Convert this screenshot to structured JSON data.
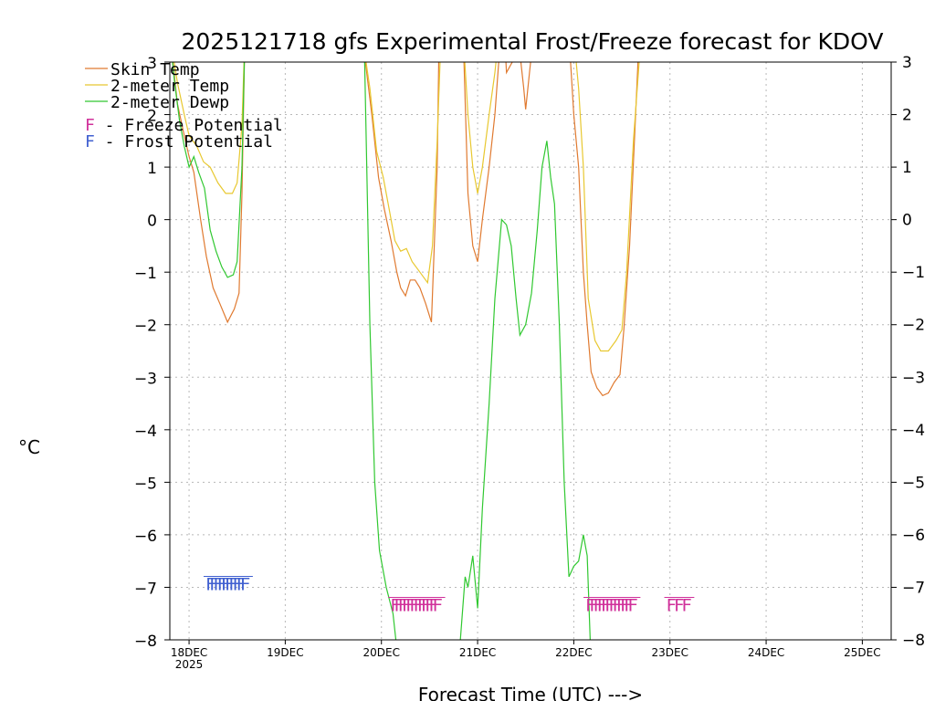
{
  "chart_data": {
    "type": "line",
    "title": "2025121718 gfs Experimental Frost/Freeze forecast for KDOV",
    "ylabel": "°C",
    "xlabel": "Forecast Time (UTC) --->",
    "ylim": [
      -8,
      3
    ],
    "xlim": [
      -0.2,
      7.3
    ],
    "yticks": [
      3,
      2,
      1,
      0,
      -1,
      -2,
      -3,
      -4,
      -5,
      -6,
      -7,
      -8
    ],
    "ytick_labels": [
      "3",
      "2",
      "1",
      "0",
      "−1",
      "−2",
      "−3",
      "−4",
      "−5",
      "−6",
      "−7",
      "−8"
    ],
    "xticks": [
      {
        "x": 0,
        "label": "18DEC",
        "sublabel": "2025"
      },
      {
        "x": 1,
        "label": "19DEC",
        "sublabel": ""
      },
      {
        "x": 2,
        "label": "20DEC",
        "sublabel": ""
      },
      {
        "x": 3,
        "label": "21DEC",
        "sublabel": ""
      },
      {
        "x": 4,
        "label": "22DEC",
        "sublabel": ""
      },
      {
        "x": 5,
        "label": "23DEC",
        "sublabel": ""
      },
      {
        "x": 6,
        "label": "24DEC",
        "sublabel": ""
      },
      {
        "x": 7,
        "label": "25DEC",
        "sublabel": ""
      }
    ],
    "grid": true,
    "legend": {
      "position": "top-left",
      "entries": [
        {
          "name": "Skin Temp",
          "color": "#e07a30"
        },
        {
          "name": "2-meter Temp",
          "color": "#e8c830"
        },
        {
          "name": "2-meter Dewp",
          "color": "#30c830"
        }
      ],
      "potentials": [
        {
          "letter": "F",
          "text": " - Freeze Potential",
          "color": "#d0309a"
        },
        {
          "letter": "F",
          "text": " - Frost Potential",
          "color": "#4060d0"
        }
      ]
    },
    "series": [
      {
        "name": "Skin Temp",
        "color": "#e07a30",
        "points": [
          [
            -0.2,
            3.5
          ],
          [
            -0.12,
            2.2
          ],
          [
            -0.05,
            1.6
          ],
          [
            0,
            1.2
          ],
          [
            0.05,
            0.9
          ],
          [
            0.12,
            0
          ],
          [
            0.18,
            -0.7
          ],
          [
            0.25,
            -1.3
          ],
          [
            0.32,
            -1.6
          ],
          [
            0.4,
            -1.95
          ],
          [
            0.47,
            -1.7
          ],
          [
            0.52,
            -1.4
          ],
          [
            0.55,
            0.5
          ],
          [
            0.58,
            3.5
          ],
          [
            1.8,
            3.5
          ],
          [
            1.9,
            2.0
          ],
          [
            1.97,
            0.8
          ],
          [
            2.03,
            0.2
          ],
          [
            2.1,
            -0.4
          ],
          [
            2.16,
            -1.0
          ],
          [
            2.2,
            -1.3
          ],
          [
            2.25,
            -1.45
          ],
          [
            2.3,
            -1.15
          ],
          [
            2.35,
            -1.15
          ],
          [
            2.4,
            -1.3
          ],
          [
            2.46,
            -1.6
          ],
          [
            2.52,
            -1.95
          ],
          [
            2.58,
            1.0
          ],
          [
            2.6,
            3.5
          ],
          [
            2.85,
            3.5
          ],
          [
            2.9,
            0.5
          ],
          [
            2.95,
            -0.5
          ],
          [
            3.0,
            -0.8
          ],
          [
            3.05,
            0.0
          ],
          [
            3.12,
            1.0
          ],
          [
            3.18,
            2.0
          ],
          [
            3.22,
            3.0
          ],
          [
            3.28,
            3.5
          ],
          [
            3.3,
            2.8
          ],
          [
            3.36,
            3.0
          ],
          [
            3.42,
            3.5
          ],
          [
            3.48,
            2.5
          ],
          [
            3.5,
            2.1
          ],
          [
            3.54,
            2.8
          ],
          [
            3.58,
            3.5
          ],
          [
            3.95,
            3.5
          ],
          [
            4.0,
            2.0
          ],
          [
            4.05,
            1.0
          ],
          [
            4.1,
            -1.0
          ],
          [
            4.14,
            -2.0
          ],
          [
            4.18,
            -2.9
          ],
          [
            4.24,
            -3.2
          ],
          [
            4.3,
            -3.35
          ],
          [
            4.36,
            -3.3
          ],
          [
            4.42,
            -3.1
          ],
          [
            4.48,
            -2.95
          ],
          [
            4.52,
            -2.1
          ],
          [
            4.58,
            -0.5
          ],
          [
            4.63,
            1.5
          ],
          [
            4.68,
            3.5
          ]
        ]
      },
      {
        "name": "2-meter Temp",
        "color": "#e8c830",
        "points": [
          [
            -0.2,
            3.5
          ],
          [
            -0.12,
            2.6
          ],
          [
            -0.05,
            2.0
          ],
          [
            0,
            1.6
          ],
          [
            0.08,
            1.4
          ],
          [
            0.15,
            1.1
          ],
          [
            0.22,
            1.0
          ],
          [
            0.3,
            0.7
          ],
          [
            0.38,
            0.5
          ],
          [
            0.45,
            0.5
          ],
          [
            0.5,
            0.7
          ],
          [
            0.55,
            1.8
          ],
          [
            0.58,
            3.5
          ],
          [
            1.8,
            3.5
          ],
          [
            1.88,
            2.5
          ],
          [
            1.95,
            1.3
          ],
          [
            2.02,
            0.8
          ],
          [
            2.08,
            0.2
          ],
          [
            2.14,
            -0.4
          ],
          [
            2.2,
            -0.6
          ],
          [
            2.26,
            -0.55
          ],
          [
            2.32,
            -0.8
          ],
          [
            2.4,
            -1.0
          ],
          [
            2.48,
            -1.2
          ],
          [
            2.53,
            -0.5
          ],
          [
            2.58,
            1.5
          ],
          [
            2.62,
            3.5
          ],
          [
            2.85,
            3.5
          ],
          [
            2.9,
            2.0
          ],
          [
            2.95,
            1.0
          ],
          [
            3.0,
            0.5
          ],
          [
            3.05,
            1.0
          ],
          [
            3.12,
            2.0
          ],
          [
            3.18,
            2.8
          ],
          [
            3.22,
            3.5
          ],
          [
            4.0,
            3.5
          ],
          [
            4.05,
            2.5
          ],
          [
            4.1,
            1.0
          ],
          [
            4.15,
            -1.5
          ],
          [
            4.22,
            -2.3
          ],
          [
            4.28,
            -2.5
          ],
          [
            4.36,
            -2.5
          ],
          [
            4.44,
            -2.3
          ],
          [
            4.5,
            -2.1
          ],
          [
            4.55,
            -1.0
          ],
          [
            4.62,
            1.5
          ],
          [
            4.68,
            3.0
          ],
          [
            4.72,
            3.5
          ]
        ]
      },
      {
        "name": "2-meter Dewp",
        "color": "#30c830",
        "points": [
          [
            -0.2,
            3.5
          ],
          [
            -0.15,
            2.6
          ],
          [
            -0.1,
            1.9
          ],
          [
            -0.05,
            1.4
          ],
          [
            0,
            1.0
          ],
          [
            0.05,
            1.2
          ],
          [
            0.1,
            0.9
          ],
          [
            0.16,
            0.6
          ],
          [
            0.22,
            -0.2
          ],
          [
            0.28,
            -0.6
          ],
          [
            0.34,
            -0.9
          ],
          [
            0.4,
            -1.1
          ],
          [
            0.46,
            -1.05
          ],
          [
            0.5,
            -0.8
          ],
          [
            0.55,
            1.0
          ],
          [
            0.58,
            3.5
          ],
          [
            1.82,
            3.5
          ],
          [
            1.88,
            -2.0
          ],
          [
            1.93,
            -5.0
          ],
          [
            1.98,
            -6.3
          ],
          [
            2.05,
            -7.0
          ],
          [
            2.12,
            -7.5
          ],
          [
            2.18,
            -8.5
          ],
          [
            2.8,
            -8.5
          ],
          [
            2.87,
            -6.8
          ],
          [
            2.9,
            -7.0
          ],
          [
            2.95,
            -6.4
          ],
          [
            3.0,
            -7.4
          ],
          [
            3.05,
            -5.5
          ],
          [
            3.12,
            -3.5
          ],
          [
            3.18,
            -1.5
          ],
          [
            3.25,
            0.0
          ],
          [
            3.3,
            -0.1
          ],
          [
            3.35,
            -0.5
          ],
          [
            3.4,
            -1.5
          ],
          [
            3.44,
            -2.2
          ],
          [
            3.5,
            -2.0
          ],
          [
            3.56,
            -1.4
          ],
          [
            3.62,
            -0.2
          ],
          [
            3.67,
            1.0
          ],
          [
            3.72,
            1.5
          ],
          [
            3.76,
            0.8
          ],
          [
            3.8,
            0.3
          ],
          [
            3.85,
            -2.0
          ],
          [
            3.9,
            -5.0
          ],
          [
            3.95,
            -6.8
          ],
          [
            4.0,
            -6.6
          ],
          [
            4.05,
            -6.5
          ],
          [
            4.1,
            -6.0
          ],
          [
            4.14,
            -6.4
          ],
          [
            4.18,
            -8.5
          ]
        ]
      }
    ],
    "markers": [
      {
        "type": "frost",
        "color": "#4060d0",
        "x": [
          0.17,
          0.21,
          0.25,
          0.29,
          0.33,
          0.37,
          0.41,
          0.45,
          0.49,
          0.53
        ],
        "y": -7.0
      },
      {
        "type": "freeze",
        "color": "#d0309a",
        "x": [
          2.09,
          2.13,
          2.17,
          2.21,
          2.25,
          2.29,
          2.33,
          2.37,
          2.41,
          2.45,
          2.49,
          2.53
        ],
        "y": -7.4
      },
      {
        "type": "freeze",
        "color": "#d0309a",
        "x": [
          4.12,
          4.16,
          4.2,
          4.24,
          4.28,
          4.32,
          4.36,
          4.4,
          4.44,
          4.48,
          4.52,
          4.56
        ],
        "y": -7.4
      },
      {
        "type": "freeze",
        "color": "#d0309a",
        "x": [
          4.96,
          5.04,
          5.12
        ],
        "y": -7.4
      }
    ],
    "marker_letter": "F"
  }
}
